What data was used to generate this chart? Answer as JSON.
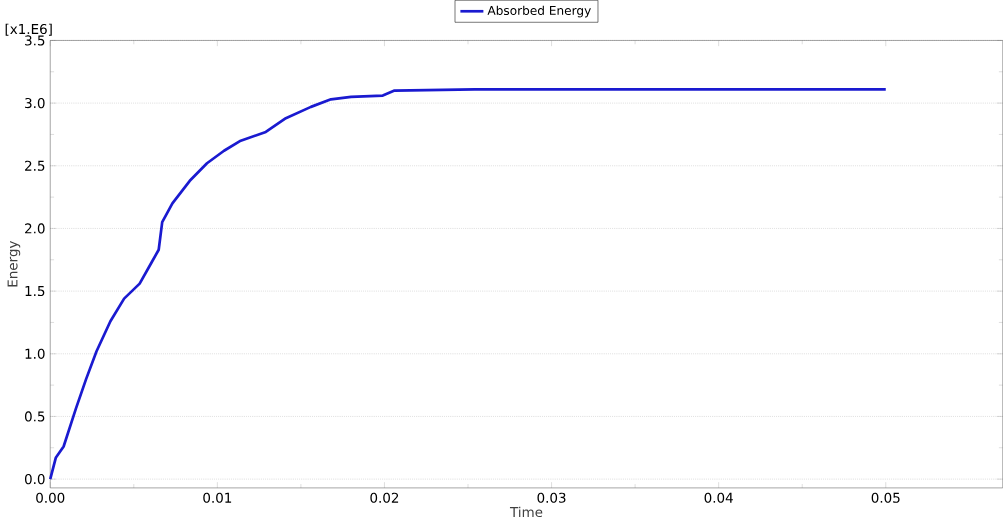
{
  "chart_data": {
    "type": "line",
    "xlabel": "Time",
    "ylabel": "Energy",
    "annotations": [
      "[x1.E6]"
    ],
    "xlim": [
      0,
      0.057
    ],
    "ylim": [
      -0.07,
      3.5
    ],
    "xticks": [
      {
        "value": 0,
        "label": "0.00"
      },
      0.01,
      0.02,
      0.03,
      0.04,
      0.05
    ],
    "yticks": [
      {
        "value": 0,
        "label": "0.0"
      },
      0.5,
      {
        "value": 1,
        "label": "1.0"
      },
      1.5,
      {
        "value": 2,
        "label": "2.0"
      },
      2.5,
      {
        "value": 3,
        "label": "3.0"
      },
      3.5
    ],
    "grid": "y",
    "legend": "top",
    "line_style": "solid",
    "series": [
      {
        "name": "Absorbed Energy",
        "color": "#1a1ad0",
        "x": [
          0,
          0.00033,
          0.0008,
          0.00153,
          0.00215,
          0.00277,
          0.0036,
          0.00442,
          0.00535,
          0.00607,
          0.00649,
          0.0067,
          0.00731,
          0.00835,
          0.00938,
          0.0104,
          0.0114,
          0.0129,
          0.0141,
          0.0156,
          0.0168,
          0.018,
          0.0199,
          0.0206,
          0.0254,
          0.05
        ],
        "values": [
          0,
          0.17,
          0.26,
          0.56,
          0.8,
          1.02,
          1.26,
          1.44,
          1.56,
          1.73,
          1.83,
          2.05,
          2.2,
          2.38,
          2.52,
          2.62,
          2.7,
          2.77,
          2.88,
          2.97,
          3.03,
          3.05,
          3.06,
          3.1,
          3.11,
          3.11
        ]
      }
    ]
  }
}
